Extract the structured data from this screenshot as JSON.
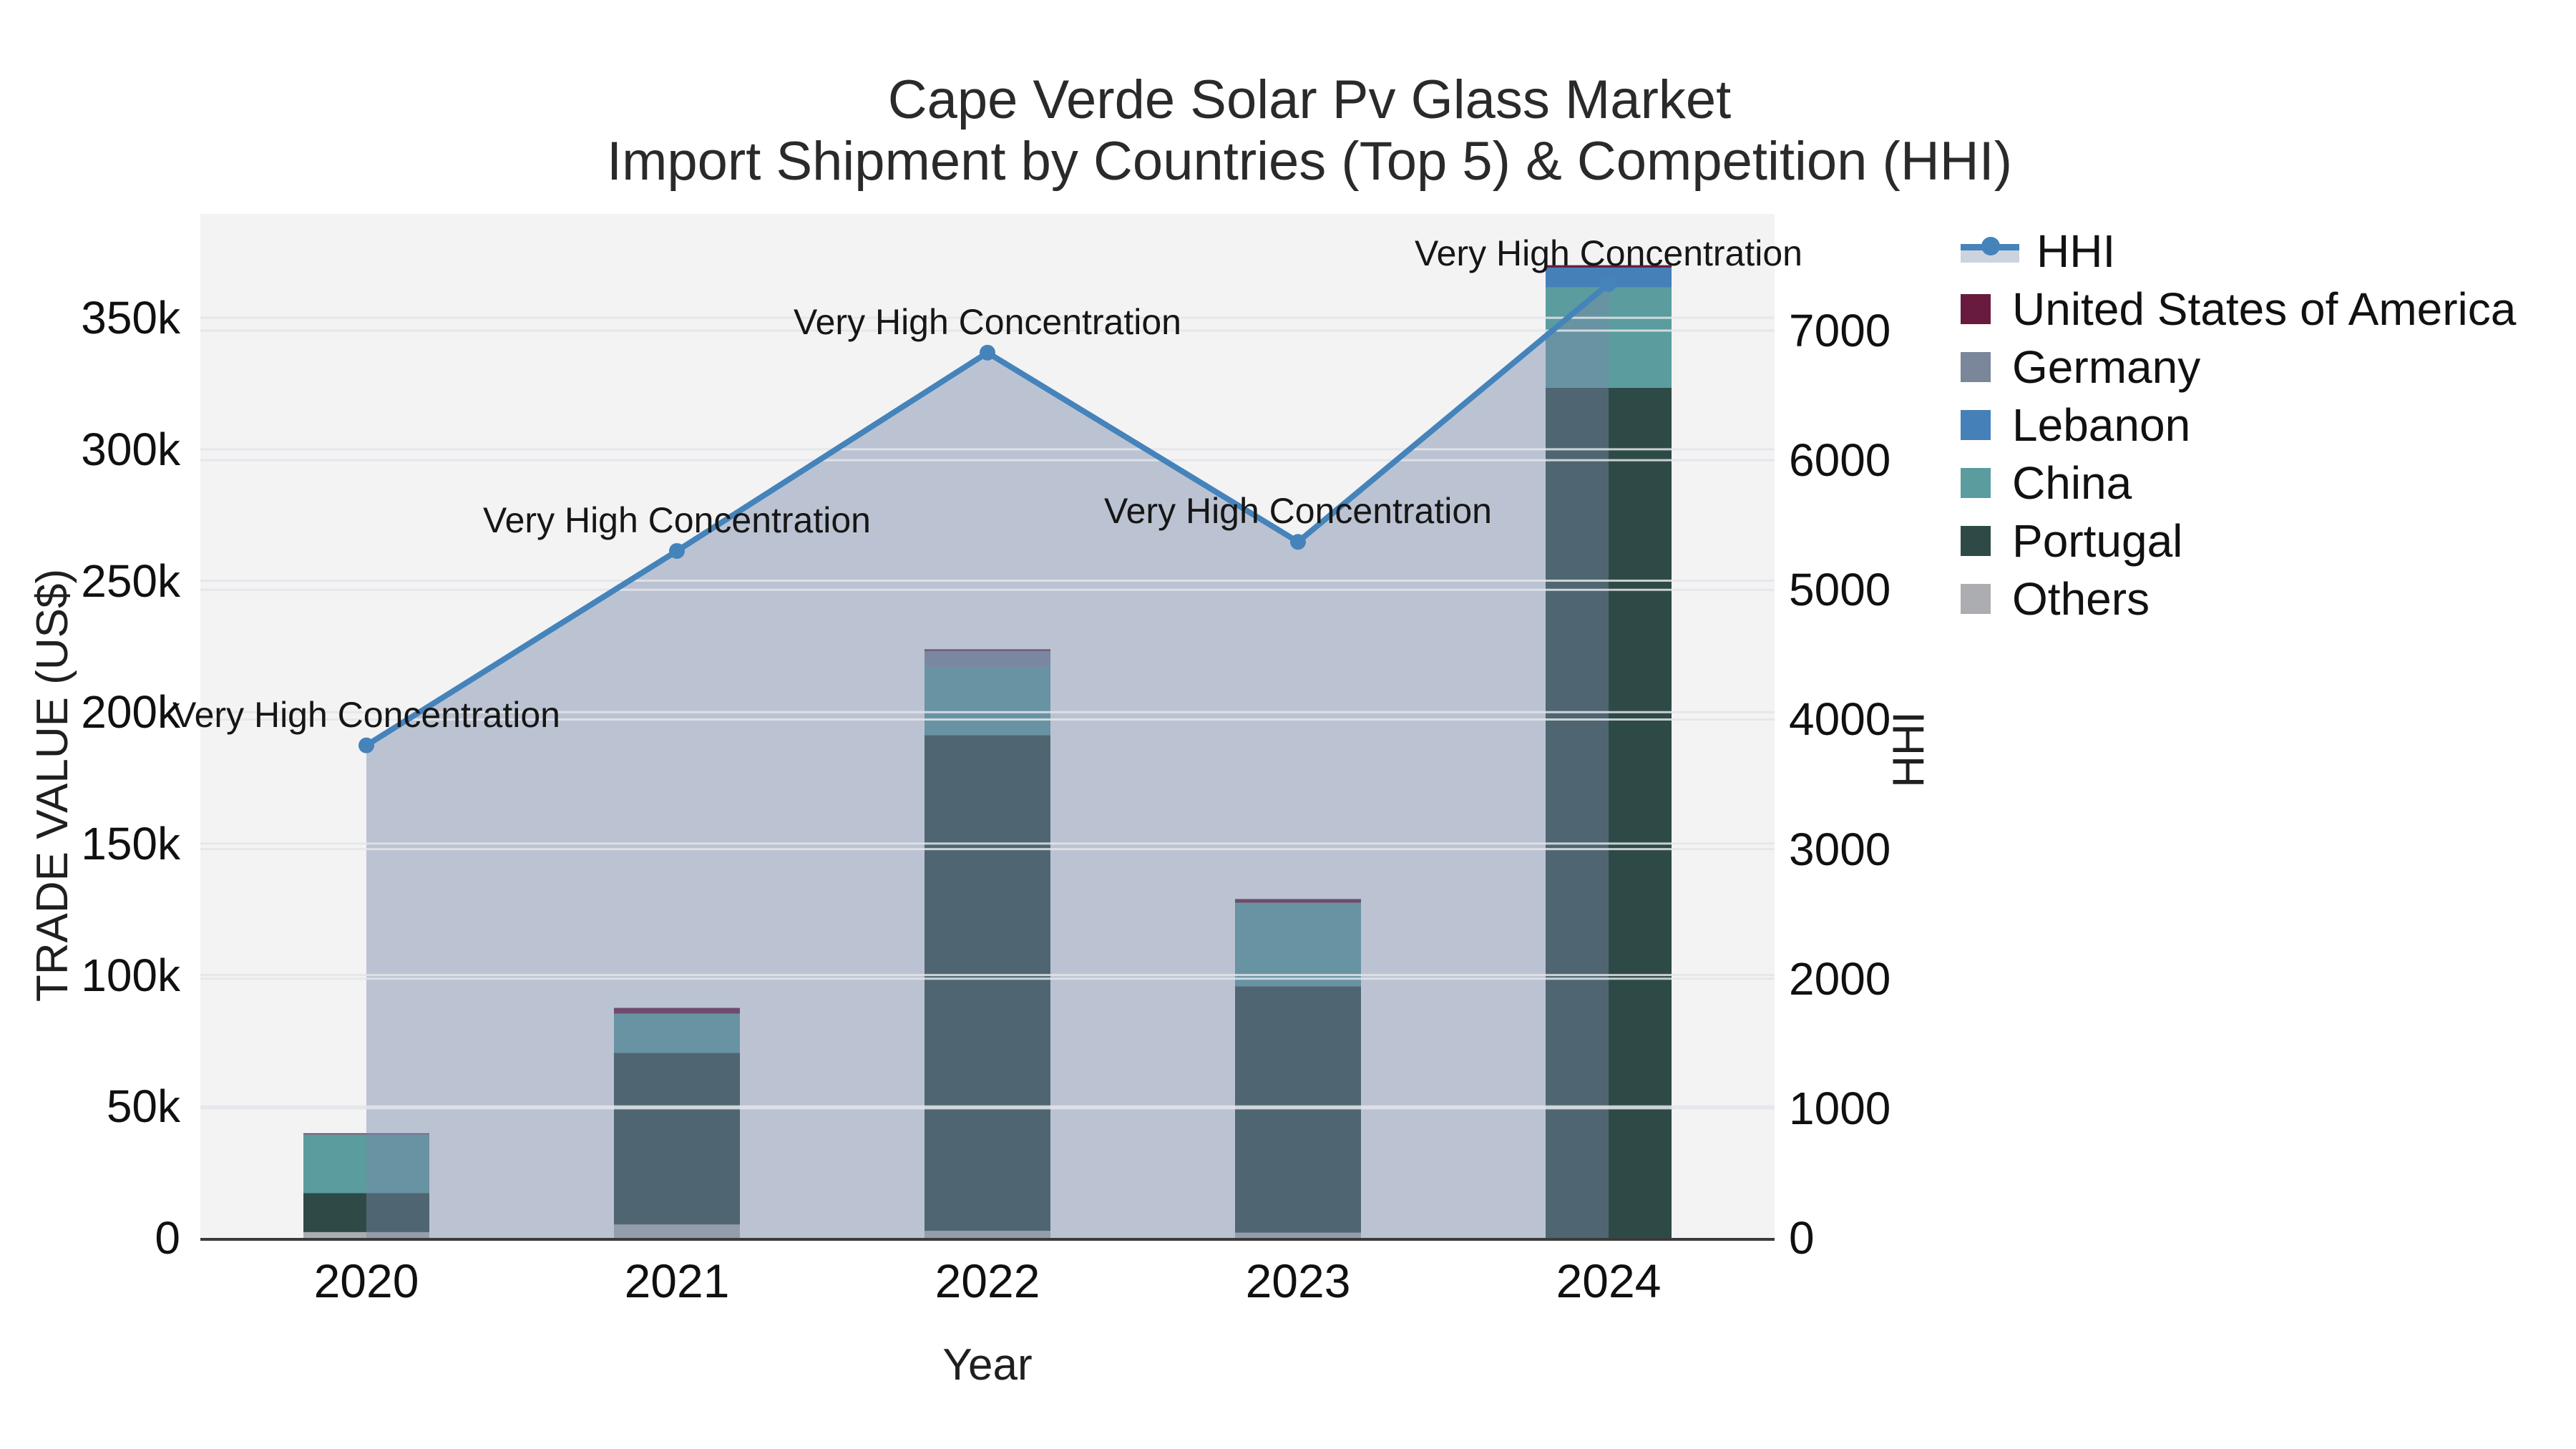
{
  "title": "Cape Verde Solar Pv Glass Market",
  "subtitle": "Import Shipment by Countries (Top 5) & Competition (HHI)",
  "axes": {
    "x_title": "Year",
    "y_left_title": "TRADE VALUE (US$)",
    "y_right_title": "HHI"
  },
  "colors": {
    "plot_bg": "#f3f3f4",
    "gridline": "#e3e6ea",
    "axis_line": "#3b3b3b",
    "hhi_line": "#4583BB",
    "hhi_fill": "rgba(119,138,168,0.45)",
    "usa": "#691B3E",
    "germany": "#7A8699",
    "lebanon": "#4680B8",
    "china": "#5B9C9E",
    "portugal": "#2E4A46",
    "others": "#ABADB0"
  },
  "chart_data": {
    "type": "bar+line",
    "categories": [
      "2020",
      "2021",
      "2022",
      "2023",
      "2024"
    ],
    "xlabel": "Year",
    "ylabel_left": "TRADE VALUE (US$)",
    "ylabel_right": "HHI",
    "y_left_axis": {
      "range": [
        0,
        389500
      ],
      "tick_values": [
        0,
        50000,
        100000,
        150000,
        200000,
        250000,
        300000,
        350000
      ],
      "tick_labels": [
        "0",
        "50k",
        "100k",
        "150k",
        "200k",
        "250k",
        "300k",
        "350k"
      ]
    },
    "y_right_axis": {
      "range": [
        0,
        7900
      ],
      "tick_values": [
        0,
        1000,
        2000,
        3000,
        4000,
        5000,
        6000,
        7000
      ],
      "tick_labels": [
        "0",
        "1000",
        "2000",
        "3000",
        "4000",
        "5000",
        "6000",
        "7000"
      ]
    },
    "bar_series": [
      {
        "name": "United States of America",
        "color": "#691B3E",
        "values": [
          300,
          2200,
          600,
          1400,
          900
        ]
      },
      {
        "name": "Germany",
        "color": "#7A8699",
        "values": [
          300,
          0,
          6300,
          0,
          0
        ]
      },
      {
        "name": "Lebanon",
        "color": "#4680B8",
        "values": [
          0,
          0,
          0,
          0,
          7600
        ]
      },
      {
        "name": "China",
        "color": "#5B9C9E",
        "values": [
          22100,
          14900,
          25800,
          31800,
          38100
        ]
      },
      {
        "name": "Portugal",
        "color": "#2E4A46",
        "values": [
          14900,
          65300,
          188500,
          93700,
          323400
        ]
      },
      {
        "name": "Others",
        "color": "#ABADB0",
        "values": [
          2200,
          5100,
          2700,
          2000,
          0
        ]
      }
    ],
    "bar_totals": [
      39800,
      87500,
      223900,
      128900,
      370000
    ],
    "line_series": {
      "name": "HHI",
      "color": "#4583BB",
      "fill_color": "rgba(119,138,168,0.45)",
      "values": [
        3800,
        5300,
        6830,
        5370,
        7360
      ]
    },
    "annotation_text": "Very High Concentration",
    "legend": [
      {
        "label": "HHI",
        "type": "line",
        "color": "#4583BB"
      },
      {
        "label": "United States of America",
        "type": "square",
        "color": "#691B3E"
      },
      {
        "label": "Germany",
        "type": "square",
        "color": "#7A8699"
      },
      {
        "label": "Lebanon",
        "type": "square",
        "color": "#4680B8"
      },
      {
        "label": "China",
        "type": "square",
        "color": "#5B9C9E"
      },
      {
        "label": "Portugal",
        "type": "square",
        "color": "#2E4A46"
      },
      {
        "label": "Others",
        "type": "square",
        "color": "#ABADB0"
      }
    ]
  }
}
